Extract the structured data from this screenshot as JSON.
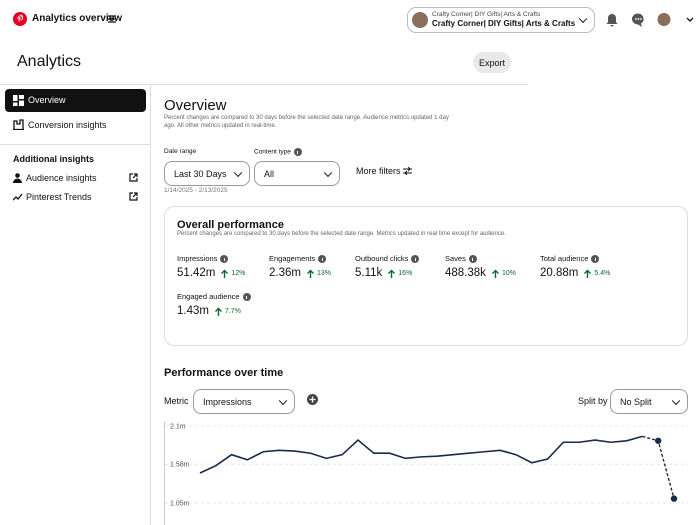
{
  "header": {
    "app_title": "Analytics overview",
    "account_line1": "Crafty Corner| DIY Gifts| Arts & Crafts",
    "account_line2": "Crafty Corner| DIY Gifts| Arts & Crafts"
  },
  "page": {
    "title": "Analytics",
    "export": "Export"
  },
  "sidebar": {
    "items": [
      "Overview",
      "Conversion insights"
    ],
    "section": "Additional insights",
    "links": [
      "Audience insights",
      "Pinterest Trends"
    ]
  },
  "overview": {
    "title": "Overview",
    "note": "Percent changes are compared to 30 days before the selected date range. Audience metrics updated 1 day ago. All other metrics updated in real-time.",
    "date_range_label": "Date range",
    "date_range_value": "Last 30 Days",
    "content_type_label": "Content type",
    "content_type_value": "All",
    "more_filters": "More filters",
    "dates": "1/14/2025 - 2/13/2025"
  },
  "performance": {
    "title": "Overall performance",
    "note": "Percent changes are compared to 30 days before the selected date range. Metrics updated in real time except for audience.",
    "metrics": [
      {
        "label": "Impressions",
        "value": "51.42m",
        "change": "12%"
      },
      {
        "label": "Engagements",
        "value": "2.36m",
        "change": "13%"
      },
      {
        "label": "Outbound clicks",
        "value": "5.11k",
        "change": "16%"
      },
      {
        "label": "Saves",
        "value": "488.38k",
        "change": "10%"
      },
      {
        "label": "Total audience",
        "value": "20.88m",
        "change": "5.4%"
      },
      {
        "label": "Engaged audience",
        "value": "1.43m",
        "change": "7.7%"
      }
    ]
  },
  "time": {
    "title": "Performance over time",
    "metric_label": "Metric",
    "metric_value": "Impressions",
    "split_label": "Split by",
    "split_value": "No Split",
    "chart_data": {
      "type": "line",
      "color": "#1a2a4a",
      "values": [
        1.46,
        1.56,
        1.71,
        1.64,
        1.75,
        1.77,
        1.76,
        1.73,
        1.66,
        1.71,
        1.91,
        1.73,
        1.73,
        1.66,
        1.68,
        1.69,
        1.71,
        1.73,
        1.75,
        1.77,
        1.71,
        1.6,
        1.65,
        1.88,
        1.88,
        1.91,
        1.88,
        1.9,
        1.96,
        1.9,
        1.11
      ],
      "ylim": [
        0.75,
        2.17
      ],
      "yticks": [
        {
          "value": 2.1,
          "label": "2.1m"
        },
        {
          "value": 1.58,
          "label": "1.58m"
        },
        {
          "value": 1.05,
          "label": "1.05m"
        }
      ],
      "grid": true
    }
  }
}
